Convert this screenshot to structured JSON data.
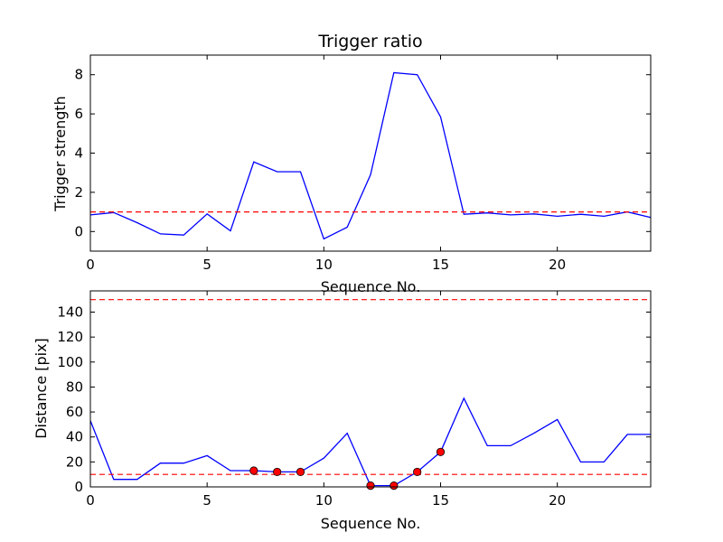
{
  "chart_data": [
    {
      "type": "line",
      "title": "Trigger ratio",
      "xlabel": "Sequence No.",
      "ylabel": "Trigger strength",
      "xlim": [
        0,
        24
      ],
      "ylim": [
        -1,
        9
      ],
      "xticks": [
        0,
        5,
        10,
        15,
        20
      ],
      "yticks": [
        0,
        2,
        4,
        6,
        8
      ],
      "grid": false,
      "colors": {
        "line": "#0000ff",
        "threshold": "#ff0000",
        "marker": "#ff0000"
      },
      "x": [
        0,
        1,
        2,
        3,
        4,
        5,
        6,
        7,
        8,
        9,
        10,
        11,
        12,
        13,
        14,
        15,
        16,
        17,
        18,
        19,
        20,
        21,
        22,
        23,
        24
      ],
      "series": [
        {
          "values": [
            0.85,
            0.97,
            0.45,
            -0.12,
            -0.18,
            0.9,
            0.03,
            3.55,
            3.05,
            3.05,
            -0.38,
            0.22,
            2.9,
            8.1,
            8.0,
            5.85,
            0.88,
            0.95,
            0.85,
            0.9,
            0.78,
            0.88,
            0.78,
            1.0,
            0.72
          ]
        }
      ],
      "thresholds": [
        1.0
      ],
      "markers": {
        "x": [],
        "y": []
      }
    },
    {
      "type": "line",
      "title": "",
      "xlabel": "Sequence No.",
      "ylabel": "Distance [pix]",
      "xlim": [
        0,
        24
      ],
      "ylim": [
        0,
        157
      ],
      "xticks": [
        0,
        5,
        10,
        15,
        20
      ],
      "yticks": [
        0,
        20,
        40,
        60,
        80,
        100,
        120,
        140
      ],
      "grid": false,
      "colors": {
        "line": "#0000ff",
        "threshold": "#ff0000",
        "marker": "#ff0000"
      },
      "x": [
        0,
        1,
        2,
        3,
        4,
        5,
        6,
        7,
        8,
        9,
        10,
        11,
        12,
        13,
        14,
        15,
        16,
        17,
        18,
        19,
        20,
        21,
        22,
        23,
        24
      ],
      "series": [
        {
          "values": [
            53,
            6,
            6,
            19,
            19,
            25,
            13,
            13,
            12,
            12,
            23,
            43,
            1,
            1,
            12,
            28,
            71,
            33,
            33,
            43,
            54,
            20,
            20,
            42,
            42
          ]
        }
      ],
      "thresholds": [
        10,
        150
      ],
      "markers": {
        "x": [
          7,
          8,
          9,
          12,
          13,
          14,
          15
        ],
        "y": [
          13,
          12,
          12,
          1,
          1,
          12,
          28
        ]
      }
    }
  ]
}
